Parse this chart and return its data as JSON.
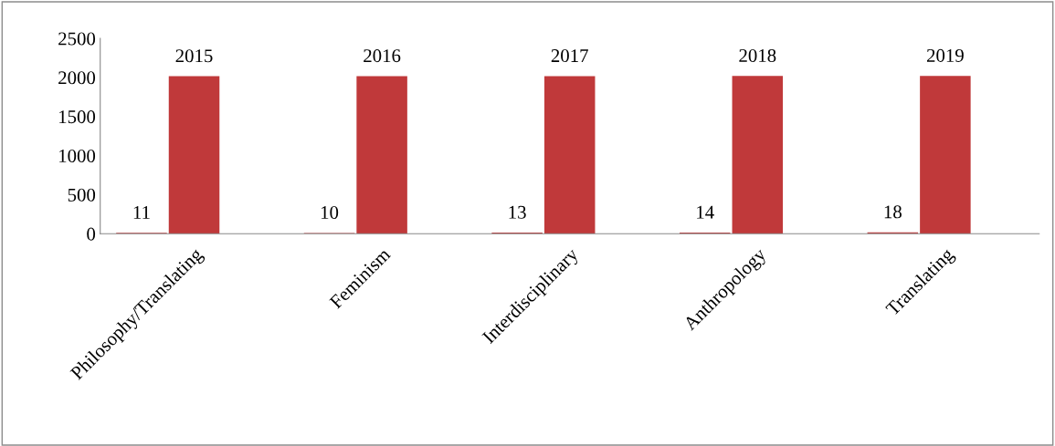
{
  "chart_data": {
    "type": "bar",
    "categories": [
      "Philosophy/Translating",
      "Feminism",
      "Interdisciplinary",
      "Anthropology",
      "Translating"
    ],
    "series": [
      {
        "color": "#c0393a",
        "values": [
          11,
          10,
          13,
          14,
          18
        ]
      },
      {
        "color": "#c0393a",
        "values": [
          2015,
          2016,
          2017,
          2018,
          2019
        ]
      }
    ],
    "ylim": [
      0,
      2500
    ],
    "yticks": [
      0,
      500,
      1000,
      1500,
      2000,
      2500
    ],
    "data_labels": true,
    "grid": false,
    "legend": false
  }
}
